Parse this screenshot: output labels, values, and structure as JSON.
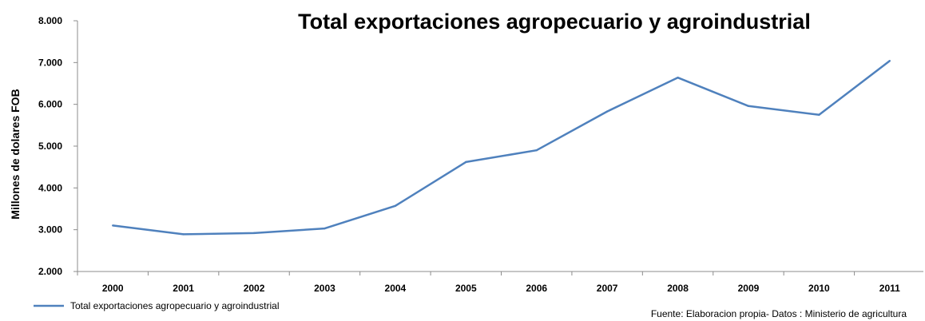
{
  "chart_data": {
    "type": "line",
    "title": "Total exportaciones agropecuario y agroindustrial",
    "ylabel": "Millones de dolares FOB",
    "xlabel": "",
    "categories": [
      "2000",
      "2001",
      "2002",
      "2003",
      "2004",
      "2005",
      "2006",
      "2007",
      "2008",
      "2009",
      "2010",
      "2011"
    ],
    "series": [
      {
        "name": "Total exportaciones agropecuario y agroindustrial",
        "values": [
          3100,
          2890,
          2920,
          3030,
          3570,
          4620,
          4900,
          5830,
          6640,
          5960,
          5750,
          7040
        ],
        "color": "#4f81bd"
      }
    ],
    "ylim": [
      2000,
      8000
    ],
    "yticks": [
      2000,
      3000,
      4000,
      5000,
      6000,
      7000,
      8000
    ],
    "ytick_labels": [
      "2.000",
      "3.000",
      "4.000",
      "5.000",
      "6.000",
      "7.000",
      "8.000"
    ],
    "grid": false,
    "legend": "bottom-left",
    "source_note": "Fuente: Elaboracion  propia-  Datos : Ministerio  de  agricultura"
  }
}
